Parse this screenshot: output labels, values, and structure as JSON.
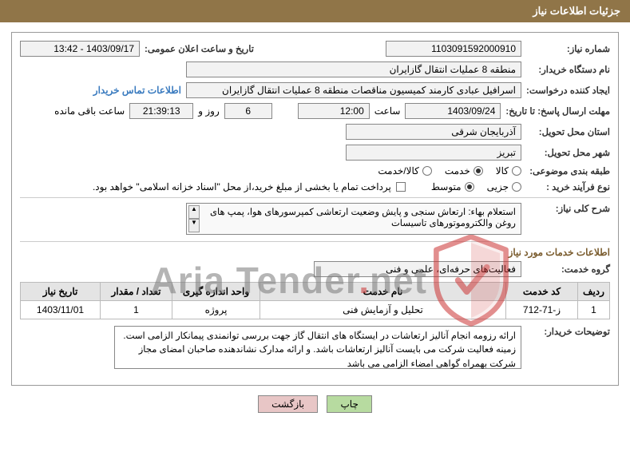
{
  "page_title": "جزئیات اطلاعات نیاز",
  "labels": {
    "need_no": "شماره نیاز:",
    "announce_dt": "تاریخ و ساعت اعلان عمومی:",
    "buyer_org": "نام دستگاه خریدار:",
    "requester": "ایجاد کننده درخواست:",
    "contact_link": "اطلاعات تماس خریدار",
    "deadline_until": "مهلت ارسال پاسخ: تا تاریخ:",
    "time": "ساعت",
    "days_and": "روز و",
    "hours_remain": "ساعت باقی مانده",
    "delivery_province": "استان محل تحویل:",
    "delivery_city": "شهر محل تحویل:",
    "subject_class": "طبقه بندی موضوعی:",
    "purchase_type": "نوع فرآیند خرید :",
    "pay_note": "پرداخت تمام یا بخشی از مبلغ خرید،از محل \"اسناد خزانه اسلامی\" خواهد بود.",
    "need_desc": "شرح کلی نیاز:",
    "svc_info": "اطلاعات خدمات مورد نیاز",
    "svc_group": "گروه خدمت:",
    "buyer_notes": "توضیحات خریدار:",
    "print": "چاپ",
    "back": "بازگشت"
  },
  "values": {
    "need_no": "1103091592000910",
    "announce_dt": "1403/09/17 - 13:42",
    "buyer_org": "منطقه 8 عملیات انتقال گازایران",
    "requester": "اسرافیل عبادی کارمند کمیسیون مناقصات منطقه 8 عملیات انتقال گازایران",
    "deadline_date": "1403/09/24",
    "deadline_time": "12:00",
    "remain_days": "6",
    "remain_hms": "21:39:13",
    "province": "آذربایجان شرقی",
    "city": "تبریز",
    "need_desc": "استعلام بهاء: ارتعاش سنجی و پایش وضعیت ارتعاشی کمپرسورهای هوا، پمپ های روغن والکتروموتورهای تاسیسات",
    "svc_group": "فعالیت‌های حرفه‌ای، علمی و فنی",
    "buyer_notes": "ارائه رزومه انجام آنالیز ارتعاشات در ایستگاه های انتقال گاز جهت بررسی توانمندی پیمانکار الزامی است. زمینه فعالیت شرکت می بایست آنالیز ارتعاشات باشد. و ارائه مدارک نشاندهنده صاحبان امضای مجاز شرکت بهمراه گواهی امضاء الزامی می باشد"
  },
  "subject_radios": {
    "options": [
      "کالا",
      "خدمت",
      "کالا/خدمت"
    ],
    "selected_index": 1
  },
  "purchase_radios": {
    "options": [
      "جزیی",
      "متوسط"
    ],
    "selected_index": 1
  },
  "table": {
    "columns": [
      "ردیف",
      "کد خدمت",
      "نام خدمت",
      "واحد اندازه گیری",
      "تعداد / مقدار",
      "تاریخ نیاز"
    ],
    "rows": [
      [
        "1",
        "ز-71-712",
        "تحلیل و آزمایش فنی",
        "پروژه",
        "1",
        "1403/11/01"
      ]
    ],
    "col_widths": [
      "40px",
      "90px",
      "auto",
      "110px",
      "90px",
      "100px"
    ]
  },
  "colors": {
    "header_bg": "#907548",
    "header_fg": "#ffffff",
    "field_bg": "#f2f2f2",
    "border": "#888888",
    "sec_header": "#7a5c2e",
    "link": "#3a7bbf",
    "btn_print": "#b7dba0",
    "btn_back": "#e8c6c6",
    "wm_grey": "#7a7a7a",
    "wm_red": "#c33333"
  },
  "watermark": {
    "text_main": "Aria Tender",
    "text_dot": ".",
    "text_tld": "net"
  }
}
